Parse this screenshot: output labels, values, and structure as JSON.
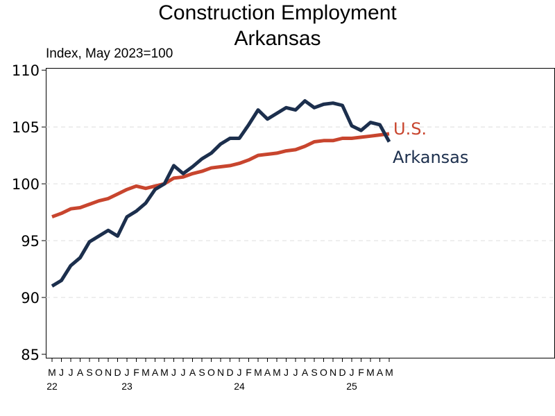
{
  "title_line1": "Construction Employment",
  "title_line2": "Arkansas",
  "subtitle": "Index, May 2023=100",
  "chart_data": {
    "type": "line",
    "title": "Construction Employment Arkansas",
    "ylabel": "Index, May 2023=100",
    "xlabel": "",
    "ylim": [
      85,
      110
    ],
    "yticks": [
      85,
      90,
      95,
      100,
      105,
      110
    ],
    "xlim": [
      0,
      48
    ],
    "grid": "horizontal dashed",
    "month_labels": [
      "M",
      "J",
      "J",
      "A",
      "S",
      "O",
      "N",
      "D",
      "J",
      "F",
      "M",
      "A",
      "M",
      "J",
      "J",
      "A",
      "S",
      "O",
      "N",
      "D",
      "J",
      "F",
      "M",
      "A",
      "M",
      "J",
      "J",
      "A",
      "S",
      "O",
      "N",
      "D",
      "J",
      "F",
      "M",
      "A",
      "M"
    ],
    "year_labels": [
      {
        "label": "22",
        "index": 0
      },
      {
        "label": "23",
        "index": 8
      },
      {
        "label": "24",
        "index": 20
      },
      {
        "label": "25",
        "index": 32
      }
    ],
    "series": [
      {
        "name": "Arkansas",
        "color": "#1c2f4d",
        "values": [
          91.0,
          91.5,
          92.8,
          93.5,
          94.9,
          95.4,
          95.9,
          95.4,
          97.1,
          97.6,
          98.3,
          99.5,
          100.0,
          101.6,
          100.9,
          101.5,
          102.2,
          102.7,
          103.5,
          104.0,
          104.0,
          105.2,
          106.5,
          105.7,
          106.2,
          106.7,
          106.5,
          107.3,
          106.7,
          107.0,
          107.1,
          106.9,
          105.1,
          104.7,
          105.4,
          105.2,
          103.7
        ]
      },
      {
        "name": "U.S.",
        "color": "#c8452e",
        "values": [
          97.1,
          97.4,
          97.8,
          97.9,
          98.2,
          98.5,
          98.7,
          99.1,
          99.5,
          99.8,
          99.6,
          99.8,
          100.0,
          100.5,
          100.6,
          100.9,
          101.1,
          101.4,
          101.5,
          101.6,
          101.8,
          102.1,
          102.5,
          102.6,
          102.7,
          102.9,
          103.0,
          103.3,
          103.7,
          103.8,
          103.8,
          104.0,
          104.0,
          104.1,
          104.2,
          104.3,
          104.4
        ]
      }
    ]
  }
}
